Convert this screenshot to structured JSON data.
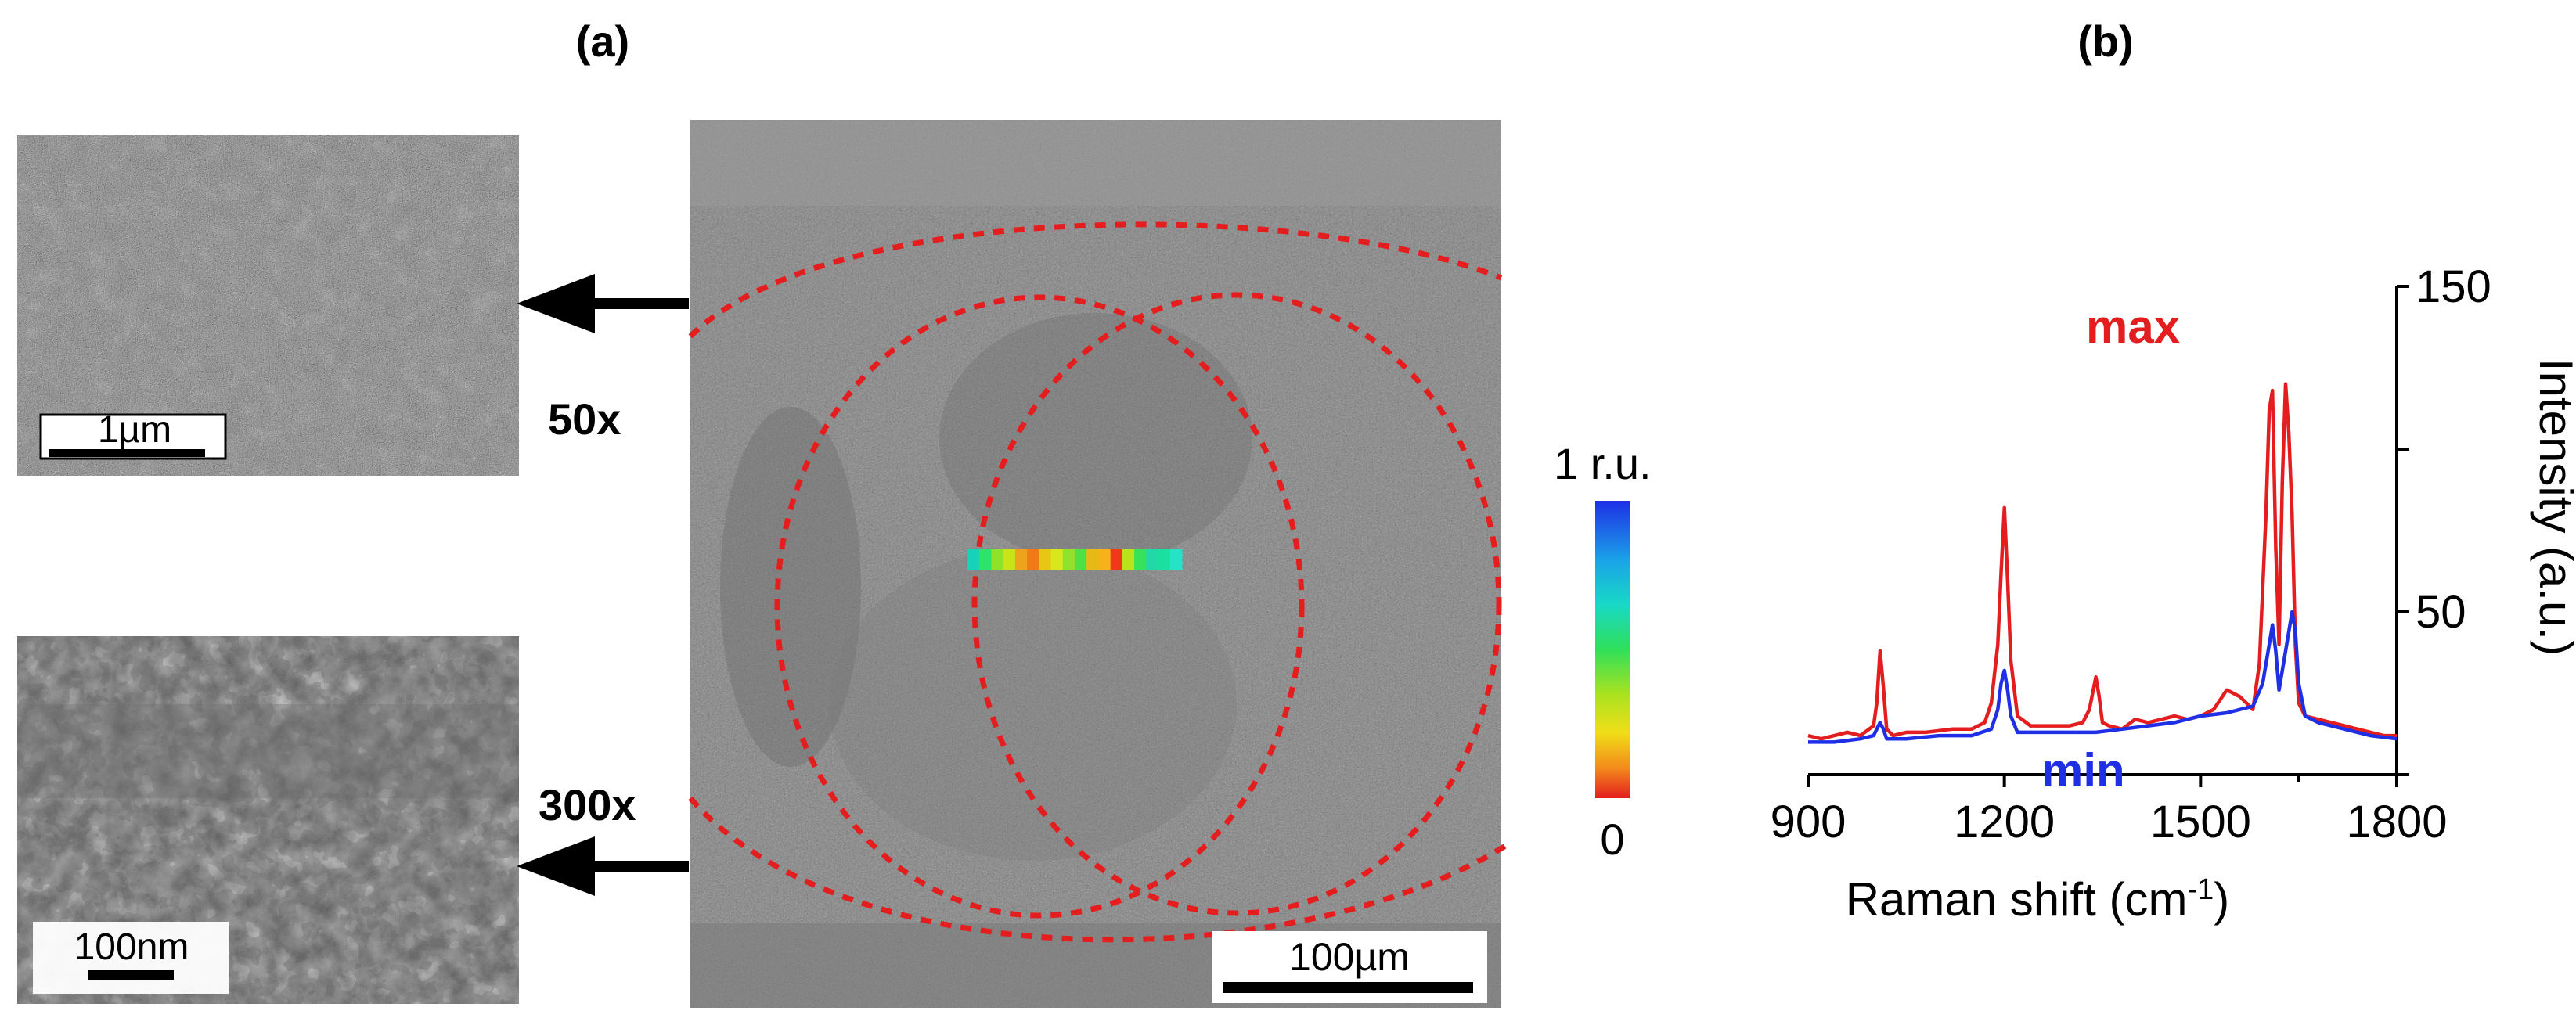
{
  "panel_a": {
    "label": "(a)",
    "inset_top": {
      "magnification": "50x",
      "scale_bar": "1µm"
    },
    "inset_bottom": {
      "magnification": "300x",
      "scale_bar": "100nm"
    },
    "main_image": {
      "scale_bar": "100µm"
    },
    "colorbar": {
      "max_label": "1 r.u.",
      "min_label": "0"
    },
    "raman_line_colors": [
      "#16d2b8",
      "#2ee36b",
      "#8ee22b",
      "#c8e317",
      "#f0a21c",
      "#f07a16",
      "#e7c614",
      "#d8e61b",
      "#8fe12b",
      "#4fe048",
      "#e7b915",
      "#f6b11b",
      "#ef3a1a",
      "#b8e31d",
      "#38e15b",
      "#22d8a6",
      "#19dfa1",
      "#26e3c7"
    ]
  },
  "panel_b": {
    "label": "(b)",
    "legend": {
      "max": "max",
      "min": "min"
    },
    "colors": {
      "max": "#e41e1e",
      "min": "#1f2fe6"
    },
    "chart_data": {
      "type": "line",
      "xlabel": "Raman shift (cm",
      "xlabel_sup": "-1",
      "xlabel_end": ")",
      "ylabel": "Intensity (a.u.)",
      "xlim": [
        900,
        1800
      ],
      "ylim": [
        0,
        150
      ],
      "x_ticks": [
        "900",
        "1200",
        "1500",
        "1800"
      ],
      "y_ticks": [
        "50",
        "150"
      ],
      "series": [
        {
          "name": "max",
          "x": [
            900,
            920,
            940,
            960,
            980,
            1000,
            1005,
            1010,
            1015,
            1020,
            1030,
            1050,
            1080,
            1120,
            1150,
            1170,
            1180,
            1190,
            1195,
            1200,
            1205,
            1210,
            1220,
            1240,
            1270,
            1300,
            1320,
            1330,
            1340,
            1345,
            1350,
            1360,
            1380,
            1400,
            1420,
            1440,
            1460,
            1480,
            1500,
            1520,
            1540,
            1560,
            1580,
            1590,
            1600,
            1605,
            1610,
            1615,
            1620,
            1625,
            1630,
            1635,
            1640,
            1645,
            1650,
            1660,
            1680,
            1700,
            1720,
            1740,
            1760,
            1780,
            1800
          ],
          "y": [
            12,
            11,
            12,
            13,
            12,
            15,
            22,
            38,
            27,
            14,
            12,
            13,
            13,
            14,
            14,
            16,
            22,
            40,
            62,
            82,
            60,
            35,
            18,
            15,
            15,
            15,
            16,
            20,
            30,
            24,
            16,
            15,
            14,
            17,
            16,
            17,
            18,
            17,
            18,
            20,
            26,
            24,
            20,
            34,
            80,
            112,
            118,
            70,
            40,
            90,
            120,
            105,
            80,
            40,
            22,
            18,
            17,
            16,
            15,
            14,
            13,
            12,
            12
          ]
        },
        {
          "name": "min",
          "x": [
            900,
            940,
            980,
            1000,
            1010,
            1015,
            1020,
            1050,
            1100,
            1150,
            1180,
            1190,
            1195,
            1200,
            1205,
            1210,
            1220,
            1260,
            1300,
            1340,
            1380,
            1420,
            1460,
            1500,
            1540,
            1580,
            1595,
            1605,
            1610,
            1615,
            1620,
            1630,
            1640,
            1645,
            1650,
            1660,
            1680,
            1720,
            1760,
            1800
          ],
          "y": [
            10,
            10,
            11,
            12,
            16,
            14,
            11,
            11,
            12,
            12,
            14,
            20,
            28,
            32,
            26,
            18,
            13,
            13,
            13,
            13,
            14,
            15,
            16,
            18,
            19,
            21,
            28,
            40,
            46,
            38,
            26,
            38,
            50,
            44,
            28,
            18,
            16,
            14,
            12,
            11
          ]
        }
      ]
    }
  }
}
